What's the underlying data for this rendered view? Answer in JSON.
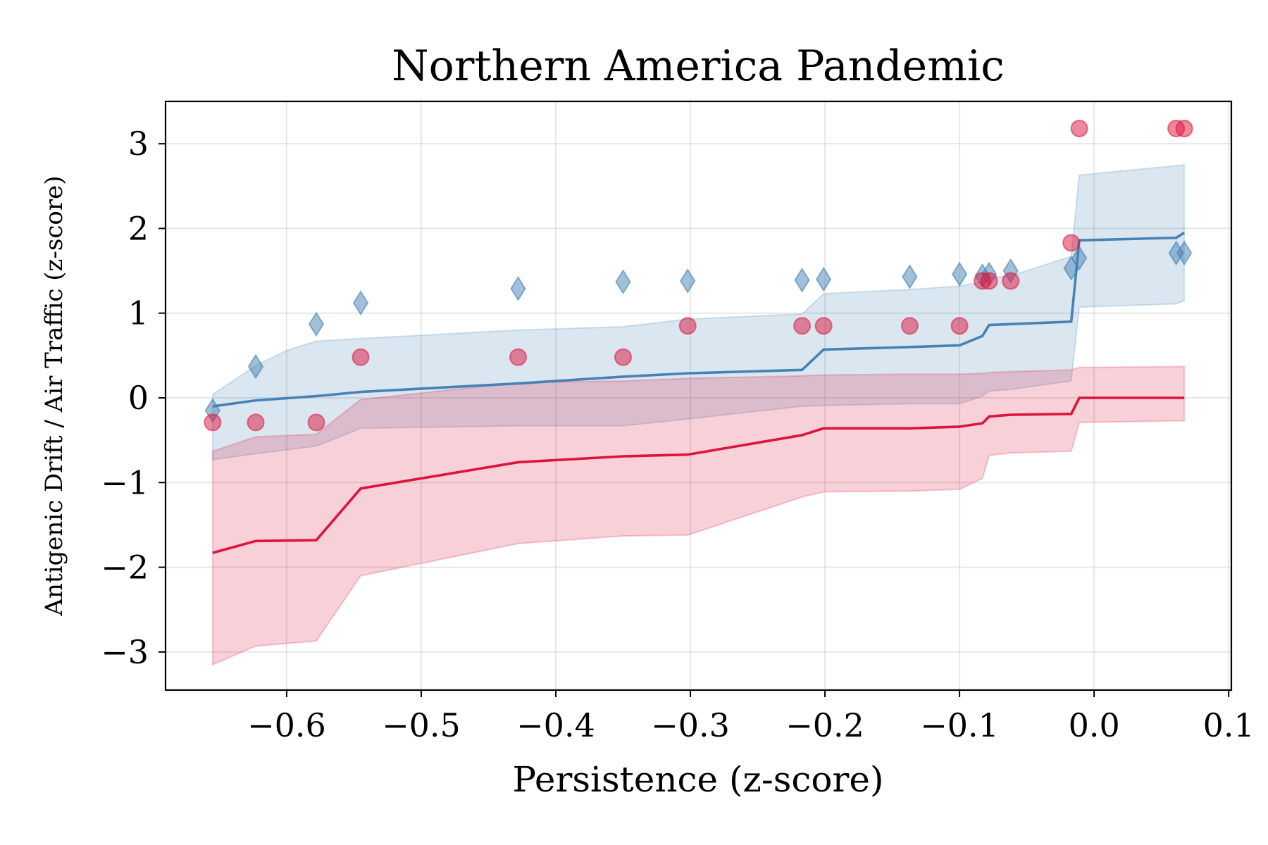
{
  "chart_data": {
    "type": "scatter",
    "title": "Northern America Pandemic",
    "xlabel": "Persistence (z-score)",
    "ylabel": "Antigenic Drift / Air Traffic (z-score)",
    "xlim": [
      -0.69,
      0.102
    ],
    "ylim": [
      -3.45,
      3.5
    ],
    "xticks": [
      -0.6,
      -0.5,
      -0.4,
      -0.3,
      -0.2,
      -0.1,
      0.0,
      0.1
    ],
    "xtick_labels": [
      "−0.6",
      "−0.5",
      "−0.4",
      "−0.3",
      "−0.2",
      "−0.1",
      "0.0",
      "0.1"
    ],
    "yticks": [
      -3,
      -2,
      -1,
      0,
      1,
      2,
      3
    ],
    "ytick_labels": [
      "−3",
      "−2",
      "−1",
      "0",
      "1",
      "2",
      "3"
    ],
    "grid": true,
    "series": [
      {
        "marker": "diamond",
        "color": "#4682b4",
        "points": [
          [
            -0.655,
            -0.15
          ],
          [
            -0.623,
            0.37
          ],
          [
            -0.578,
            0.87
          ],
          [
            -0.545,
            1.12
          ],
          [
            -0.428,
            1.29
          ],
          [
            -0.35,
            1.37
          ],
          [
            -0.302,
            1.38
          ],
          [
            -0.217,
            1.39
          ],
          [
            -0.201,
            1.4
          ],
          [
            -0.137,
            1.43
          ],
          [
            -0.1,
            1.46
          ],
          [
            -0.083,
            1.44
          ],
          [
            -0.078,
            1.46
          ],
          [
            -0.062,
            1.5
          ],
          [
            -0.017,
            1.53
          ],
          [
            -0.011,
            1.65
          ],
          [
            0.061,
            1.71
          ],
          [
            0.067,
            1.71
          ]
        ],
        "fit_line": [
          [
            -0.655,
            -0.1
          ],
          [
            -0.623,
            -0.03
          ],
          [
            -0.578,
            0.02
          ],
          [
            -0.545,
            0.07
          ],
          [
            -0.428,
            0.17
          ],
          [
            -0.35,
            0.25
          ],
          [
            -0.302,
            0.29
          ],
          [
            -0.217,
            0.33
          ],
          [
            -0.201,
            0.57
          ],
          [
            -0.137,
            0.6
          ],
          [
            -0.1,
            0.62
          ],
          [
            -0.083,
            0.73
          ],
          [
            -0.078,
            0.86
          ],
          [
            -0.062,
            0.87
          ],
          [
            -0.017,
            0.9
          ],
          [
            -0.011,
            1.86
          ],
          [
            0.061,
            1.89
          ],
          [
            0.067,
            1.95
          ]
        ],
        "band_upper": [
          [
            -0.655,
            0.04
          ],
          [
            -0.623,
            0.38
          ],
          [
            -0.6,
            0.56
          ],
          [
            -0.578,
            0.67
          ],
          [
            -0.545,
            0.7
          ],
          [
            -0.428,
            0.8
          ],
          [
            -0.35,
            0.84
          ],
          [
            -0.302,
            0.93
          ],
          [
            -0.217,
            0.99
          ],
          [
            -0.201,
            1.23
          ],
          [
            -0.137,
            1.28
          ],
          [
            -0.1,
            1.32
          ],
          [
            -0.083,
            1.37
          ],
          [
            -0.078,
            1.42
          ],
          [
            -0.062,
            1.44
          ],
          [
            -0.017,
            1.67
          ],
          [
            -0.011,
            2.63
          ],
          [
            0.067,
            2.75
          ]
        ],
        "band_lower": [
          [
            -0.655,
            -0.73
          ],
          [
            -0.623,
            -0.66
          ],
          [
            -0.578,
            -0.57
          ],
          [
            -0.545,
            -0.36
          ],
          [
            -0.428,
            -0.33
          ],
          [
            -0.35,
            -0.33
          ],
          [
            -0.302,
            -0.25
          ],
          [
            -0.217,
            -0.1
          ],
          [
            -0.201,
            -0.09
          ],
          [
            -0.137,
            -0.07
          ],
          [
            -0.1,
            -0.07
          ],
          [
            -0.083,
            0.02
          ],
          [
            -0.078,
            0.08
          ],
          [
            -0.062,
            0.1
          ],
          [
            -0.017,
            0.2
          ],
          [
            -0.011,
            1.07
          ],
          [
            0.061,
            1.11
          ],
          [
            0.067,
            1.15
          ]
        ]
      },
      {
        "marker": "circle",
        "color": "#dc143c",
        "points": [
          [
            -0.655,
            -0.29
          ],
          [
            -0.623,
            -0.29
          ],
          [
            -0.578,
            -0.29
          ],
          [
            -0.545,
            0.48
          ],
          [
            -0.428,
            0.48
          ],
          [
            -0.35,
            0.48
          ],
          [
            -0.302,
            0.85
          ],
          [
            -0.217,
            0.85
          ],
          [
            -0.201,
            0.85
          ],
          [
            -0.137,
            0.85
          ],
          [
            -0.1,
            0.85
          ],
          [
            -0.083,
            1.38
          ],
          [
            -0.078,
            1.38
          ],
          [
            -0.062,
            1.38
          ],
          [
            -0.017,
            1.83
          ],
          [
            -0.011,
            3.18
          ],
          [
            0.061,
            3.18
          ],
          [
            0.067,
            3.18
          ]
        ],
        "fit_line": [
          [
            -0.655,
            -1.83
          ],
          [
            -0.623,
            -1.69
          ],
          [
            -0.578,
            -1.68
          ],
          [
            -0.545,
            -1.07
          ],
          [
            -0.428,
            -0.76
          ],
          [
            -0.35,
            -0.69
          ],
          [
            -0.302,
            -0.67
          ],
          [
            -0.217,
            -0.44
          ],
          [
            -0.201,
            -0.36
          ],
          [
            -0.137,
            -0.36
          ],
          [
            -0.1,
            -0.34
          ],
          [
            -0.083,
            -0.3
          ],
          [
            -0.078,
            -0.22
          ],
          [
            -0.062,
            -0.2
          ],
          [
            -0.017,
            -0.19
          ],
          [
            -0.011,
            0.0
          ],
          [
            0.061,
            0.0
          ],
          [
            0.067,
            0.0
          ]
        ],
        "band_upper": [
          [
            -0.655,
            -0.63
          ],
          [
            -0.623,
            -0.46
          ],
          [
            -0.578,
            -0.43
          ],
          [
            -0.545,
            -0.02
          ],
          [
            -0.428,
            0.18
          ],
          [
            -0.35,
            0.2
          ],
          [
            -0.302,
            0.23
          ],
          [
            -0.217,
            0.26
          ],
          [
            -0.201,
            0.27
          ],
          [
            -0.137,
            0.28
          ],
          [
            -0.1,
            0.28
          ],
          [
            -0.083,
            0.29
          ],
          [
            -0.078,
            0.3
          ],
          [
            -0.062,
            0.31
          ],
          [
            -0.017,
            0.33
          ],
          [
            -0.011,
            0.36
          ],
          [
            0.067,
            0.37
          ]
        ],
        "band_lower": [
          [
            -0.655,
            -3.15
          ],
          [
            -0.623,
            -2.93
          ],
          [
            -0.578,
            -2.87
          ],
          [
            -0.545,
            -2.1
          ],
          [
            -0.428,
            -1.72
          ],
          [
            -0.35,
            -1.63
          ],
          [
            -0.302,
            -1.62
          ],
          [
            -0.217,
            -1.17
          ],
          [
            -0.201,
            -1.11
          ],
          [
            -0.137,
            -1.1
          ],
          [
            -0.1,
            -1.08
          ],
          [
            -0.083,
            -0.95
          ],
          [
            -0.078,
            -0.68
          ],
          [
            -0.062,
            -0.65
          ],
          [
            -0.017,
            -0.63
          ],
          [
            -0.011,
            -0.29
          ],
          [
            0.067,
            -0.27
          ]
        ]
      }
    ]
  }
}
